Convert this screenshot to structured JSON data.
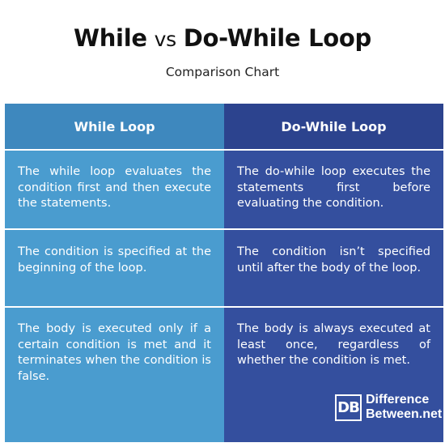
{
  "header": {
    "title_part1": "While",
    "title_vs": "vs",
    "title_part2": "Do-While Loop",
    "subtitle": "Comparison Chart"
  },
  "columns": [
    {
      "heading": "While Loop",
      "rows": [
        "The while loop evaluates the condition first and then execute the statements.",
        "The condition is specified at the beginning of the loop.",
        "The body is executed only if a certain condition is met and it terminates when the condition is false."
      ]
    },
    {
      "heading": "Do-While Loop",
      "rows": [
        "The do-while loop executes the statements first before evaluating the condition.",
        "The condition isn’t specified until after the body of the loop.",
        "The body is always executed at least once, regardless of whether the condition is met."
      ]
    }
  ],
  "logo": {
    "mark": "DB",
    "line1": "Difference",
    "line2": "Between.net"
  },
  "colors": {
    "left_header": "#3e88be",
    "left_body": "#4a9ccf",
    "right_header": "#2c438e",
    "right_body": "#344f9e"
  }
}
